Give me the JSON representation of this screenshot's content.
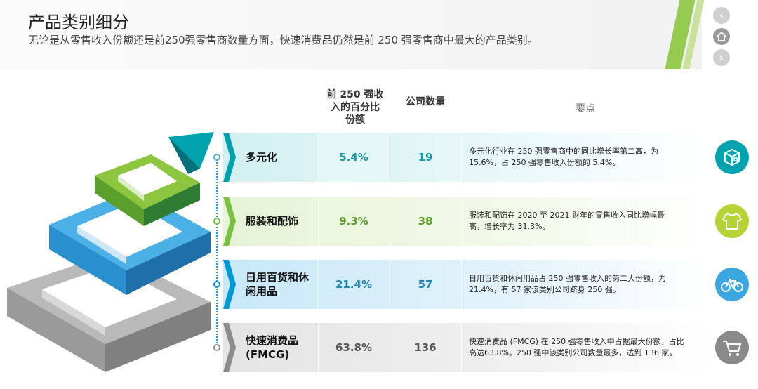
{
  "header": {
    "title": "产品类别细分",
    "subtitle": "无论是从零售收入份额还是前250强零售商数量方面，快速消费品仍然是前 250 强零售商中最大的产品类别。"
  },
  "nav": {
    "prev": "‹",
    "home": "⌂",
    "next": "›"
  },
  "table": {
    "col_pct_line1": "前 250 强收",
    "col_pct_line2": "入的百分比",
    "col_pct_line3": "份额",
    "col_count": "公司数量",
    "col_notes": "要点",
    "rows": [
      {
        "cat_line1": "多元化",
        "cat_line2": "",
        "pct": "5.4%",
        "count": "19",
        "note_line1": "多元化行业在 250 强零售商中的同比增长率第二高，为",
        "note_line2": "15.6%，占 250 强零售收入份额的 5.4%。",
        "accent": "#00a3ad",
        "icon": "box-icon"
      },
      {
        "cat_line1": "服装和配饰",
        "cat_line2": "",
        "pct": "9.3%",
        "count": "38",
        "note_line1": "服装和配饰在 2020 至 2021 财年的零售收入同比增幅最",
        "note_line2": "高，增长率为 31.3%。",
        "accent": "#7ac142",
        "icon": "tshirt-icon"
      },
      {
        "cat_line1": "日用百货和休",
        "cat_line2": "闲用品",
        "pct": "21.4%",
        "count": "57",
        "note_line1": "日用百货和休闲用品占 250 强零售收入的第二大份额，为",
        "note_line2": "21.4%，有 57 家该类别公司跻身 250 强。",
        "accent": "#0097d6",
        "icon": "bicycle-icon"
      },
      {
        "cat_line1": "快速消费品",
        "cat_line2": "(FMCG)",
        "pct": "63.8%",
        "count": "136",
        "note_line1": "快速消费品 (FMCG) 在 250 强零售收入中占据最大份额，占比",
        "note_line2": "高达63.8%。250 强中该类别公司数量最多，达到 136 家。",
        "accent": "#8c8c8c",
        "icon": "cart-icon"
      }
    ]
  }
}
